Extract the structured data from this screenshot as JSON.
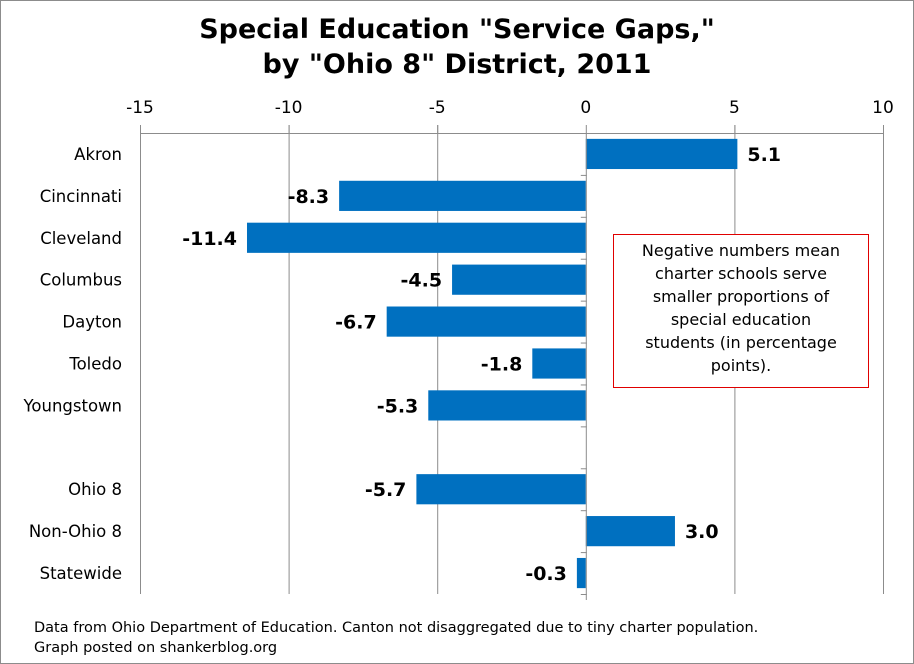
{
  "chart_data": {
    "type": "bar",
    "orientation": "horizontal",
    "title": "Special Education \"Service Gaps,\" by \"Ohio 8\" District, 2011",
    "title_lines": [
      "Special Education \"Service Gaps,\"",
      "by \"Ohio 8\" District, 2011"
    ],
    "xlabel": "",
    "ylabel": "",
    "xlim": [
      -15,
      10
    ],
    "x_ticks": [
      -15,
      -10,
      -5,
      0,
      5,
      10
    ],
    "x_tick_labels": [
      "-15",
      "-10",
      "-5",
      "0",
      "5",
      "10"
    ],
    "x_axis_position": "top",
    "grid": true,
    "categories": [
      "Akron",
      "Cincinnati",
      "Cleveland",
      "Columbus",
      "Dayton",
      "Toledo",
      "Youngstown",
      "",
      "Ohio 8",
      "Non-Ohio 8",
      "Statewide"
    ],
    "values": [
      5.1,
      -8.3,
      -11.4,
      -4.5,
      -6.7,
      -1.8,
      -5.3,
      null,
      -5.7,
      3.0,
      -0.3
    ],
    "data_labels": [
      "5.1",
      "-8.3",
      "-11.4",
      "-4.5",
      "-6.7",
      "-1.8",
      "-5.3",
      "",
      "-5.7",
      "3.0",
      "-0.3"
    ],
    "bar_color": "#0070c0",
    "legend": "none",
    "annotation": {
      "lines": [
        "Negative numbers mean",
        "charter schools serve",
        "smaller proportions of",
        "special education",
        "students (in percentage",
        "points)."
      ],
      "placement": "right-middle",
      "border_color": "#e00000"
    }
  },
  "footer": {
    "lines": [
      "Data from Ohio Department of Education. Canton not disaggregated due to tiny charter population.",
      "Graph posted on shankerblog.org"
    ]
  }
}
